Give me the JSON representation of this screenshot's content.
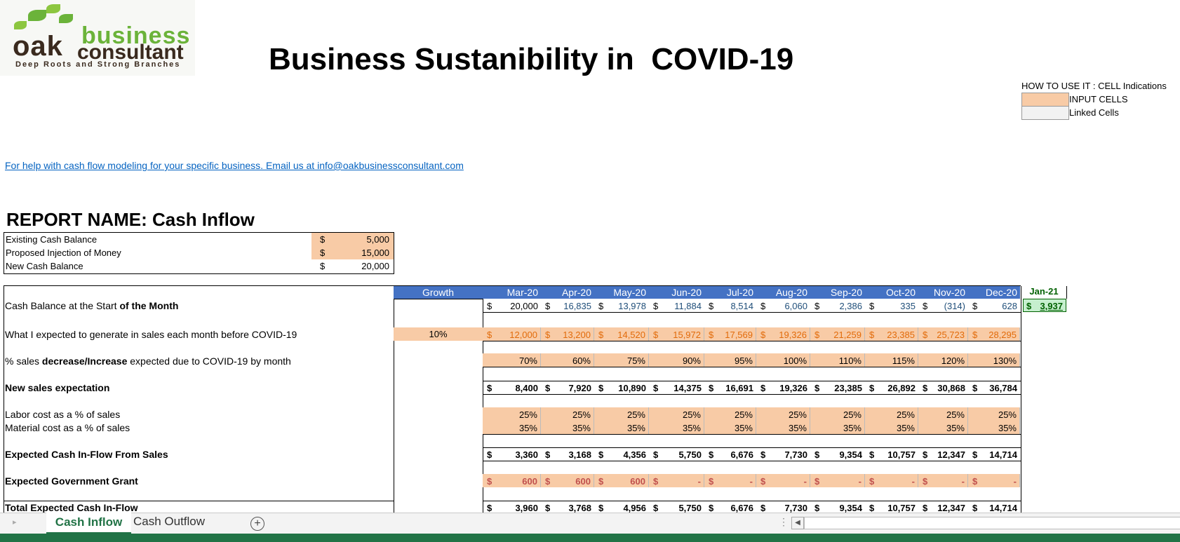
{
  "logo": {
    "word1": "oak",
    "word2": "business",
    "word3": "consultant",
    "tagline": "Deep Roots and Strong Branches"
  },
  "title": "Business Sustanibility in  COVID-19",
  "howto": {
    "heading": "HOW TO USE IT : CELL Indications",
    "input_label": "INPUT CELLS",
    "linked_label": "Linked Cells"
  },
  "help_link": "For help with cash flow modeling for your specific business. Email us at info@oakbusinessconsultant.com",
  "report_name": "REPORT NAME: Cash Inflow",
  "balance": [
    {
      "label": "Existing Cash Balance",
      "cur": "$",
      "amount": "5,000"
    },
    {
      "label": "Proposed Injection of Money",
      "cur": "$",
      "amount": "15,000"
    },
    {
      "label": "New Cash Balance",
      "cur": "$",
      "amount": "20,000"
    }
  ],
  "grid": {
    "growth_header": "Growth",
    "months": [
      "Mar-20",
      "Apr-20",
      "May-20",
      "Jun-20",
      "Jul-20",
      "Aug-20",
      "Sep-20",
      "Oct-20",
      "Nov-20",
      "Dec-20"
    ],
    "extra_month": "Jan-21",
    "rows": [
      {
        "label": "Cash Balance at the Start ",
        "label_bold": "of the Month",
        "cur": true,
        "values": [
          "20,000",
          "16,835",
          "13,978",
          "11,884",
          "8,514",
          "6,060",
          "2,386",
          "335",
          "(314)",
          "628"
        ],
        "extra": "3,937"
      },
      {
        "label": "What I expected to generate in sales each month before COVID-19",
        "growth": "10%",
        "cur": true,
        "values": [
          "12,000",
          "13,200",
          "14,520",
          "15,972",
          "17,569",
          "19,326",
          "21,259",
          "23,385",
          "25,723",
          "28,295"
        ]
      },
      {
        "label_pre": "% sales ",
        "label_bold": "decrease/Increase",
        "label_post": " expected due to COVID-19 by month",
        "values": [
          "70%",
          "60%",
          "75%",
          "90%",
          "95%",
          "100%",
          "110%",
          "115%",
          "120%",
          "130%"
        ]
      },
      {
        "label": "New sales expectation",
        "cur": true,
        "values": [
          "8,400",
          "7,920",
          "10,890",
          "14,375",
          "16,691",
          "19,326",
          "23,385",
          "26,892",
          "30,868",
          "36,784"
        ]
      },
      {
        "label": "Labor cost as a % of sales",
        "values": [
          "25%",
          "25%",
          "25%",
          "25%",
          "25%",
          "25%",
          "25%",
          "25%",
          "25%",
          "25%"
        ]
      },
      {
        "label": "Material cost as a % of sales",
        "values": [
          "35%",
          "35%",
          "35%",
          "35%",
          "35%",
          "35%",
          "35%",
          "35%",
          "35%",
          "35%"
        ]
      },
      {
        "label": "Expected Cash In-Flow From Sales",
        "cur": true,
        "values": [
          "3,360",
          "3,168",
          "4,356",
          "5,750",
          "6,676",
          "7,730",
          "9,354",
          "10,757",
          "12,347",
          "14,714"
        ]
      },
      {
        "label": "Expected Government Grant",
        "cur": true,
        "values": [
          "600",
          "600",
          "600",
          "-",
          "-",
          "-",
          "-",
          "-",
          "-",
          "-"
        ]
      },
      {
        "label": "Total Expected Cash In-Flow",
        "cur": true,
        "values": [
          "3,960",
          "3,768",
          "4,956",
          "5,750",
          "6,676",
          "7,730",
          "9,354",
          "10,757",
          "12,347",
          "14,714"
        ]
      }
    ],
    "currency": "$"
  },
  "tabs": [
    "Cash Inflow",
    "Cash Outflow"
  ],
  "add_tab": "+",
  "colors": {
    "input": "#f8cba6",
    "header": "#4472c4",
    "excel_green": "#217346",
    "linked": "#f2f2f2",
    "highlight_green": "#c6efce"
  }
}
